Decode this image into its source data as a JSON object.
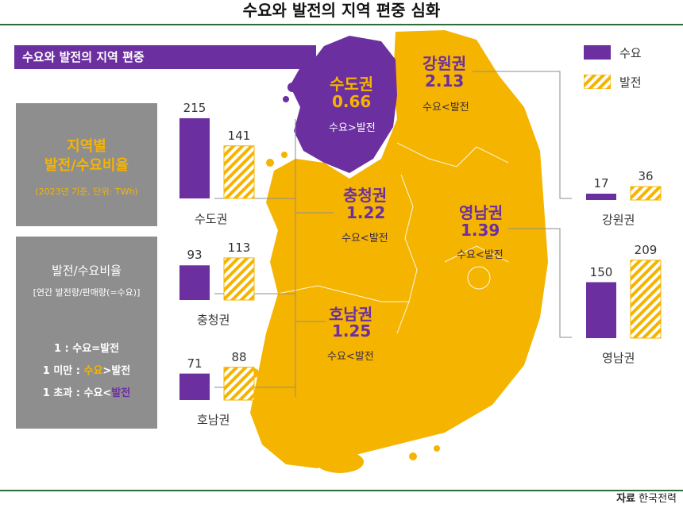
{
  "title": "수요와 발전의 지역 편중 심화",
  "banner": "수요와 발전의 지역 편중",
  "legend": {
    "demand": "수요",
    "generation": "발전"
  },
  "colors": {
    "demand": "#6b2fa0",
    "generation": "#f5b400",
    "map": "#f5b400",
    "panel": "#8e8e8e"
  },
  "panel1": {
    "line1": "지역별",
    "line2": "발전/수요비율",
    "note": "(2023년 기준, 단위: TWh)"
  },
  "panel2": {
    "title": "발전/수요비율",
    "subtitle": "[연간 발전량/판매량(=수요)]",
    "rule1": "1 : 수요=발전",
    "rule2_prefix": "1 미만 : ",
    "rule2_demand": "수요",
    "rule2_suffix": ">발전",
    "rule3_prefix": "1 초과 : 수요<",
    "rule3_gen": "발전"
  },
  "regions": {
    "sudo": {
      "name": "수도권",
      "ratio": "0.66",
      "relation": "수요>발전"
    },
    "gangwon": {
      "name": "강원권",
      "ratio": "2.13",
      "relation": "수요<발전"
    },
    "chungcheong": {
      "name": "충청권",
      "ratio": "1.22",
      "relation": "수요<발전"
    },
    "yeongnam": {
      "name": "영남권",
      "ratio": "1.39",
      "relation": "수요<발전"
    },
    "honam": {
      "name": "호남권",
      "ratio": "1.25",
      "relation": "수요<발전"
    }
  },
  "chart_data": {
    "type": "bar",
    "title": "지역별 발전/수요비율",
    "unit": "TWh",
    "categories": [
      "수도권",
      "충청권",
      "호남권",
      "강원권",
      "영남권"
    ],
    "series": [
      {
        "name": "수요",
        "values": [
          215,
          93,
          71,
          17,
          150
        ]
      },
      {
        "name": "발전",
        "values": [
          141,
          113,
          88,
          36,
          209
        ]
      }
    ]
  },
  "source": {
    "label": "자료",
    "name": "한국전력"
  }
}
